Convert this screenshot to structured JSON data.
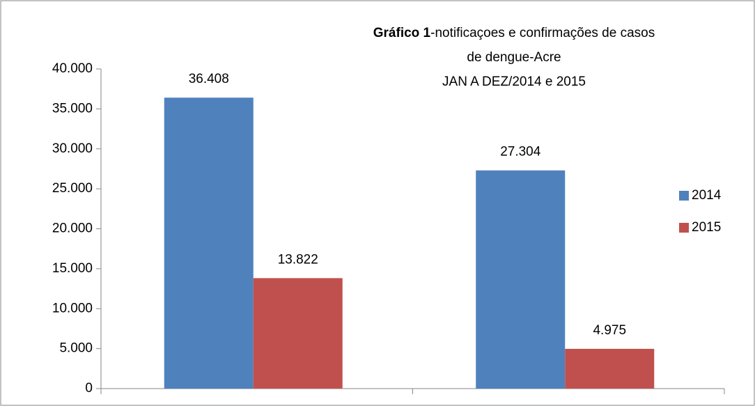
{
  "chart_data": {
    "type": "bar",
    "title_bold": "Gráfico 1",
    "title": [
      "-notificaçoes e confirmações de casos",
      "de dengue-Acre",
      "JAN A DEZ/2014 e 2015"
    ],
    "categories": [
      null,
      null
    ],
    "series": [
      {
        "name": "2014",
        "color": "#4f81bd",
        "values": [
          36408,
          27304
        ],
        "value_labels": [
          "36.408",
          "27.304"
        ]
      },
      {
        "name": "2015",
        "color": "#c0504d",
        "values": [
          13822,
          4975
        ],
        "value_labels": [
          "13.822",
          "4.975"
        ]
      }
    ],
    "ylim": [
      0,
      40000
    ],
    "yticks": [
      0,
      {
        "value": 5000,
        "label": "5.000"
      },
      {
        "value": 10000,
        "label": "10.000"
      },
      {
        "value": 15000,
        "label": "15.000"
      },
      {
        "value": 20000,
        "label": "20.000"
      },
      {
        "value": 25000,
        "label": "25.000"
      },
      {
        "value": 30000,
        "label": "30.000"
      },
      {
        "value": 35000,
        "label": "35.000"
      },
      {
        "value": 40000,
        "label": "40.000"
      }
    ],
    "legend": "right"
  }
}
